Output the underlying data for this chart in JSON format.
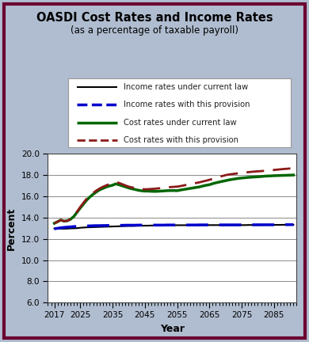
{
  "title": "OASDI Cost Rates and Income Rates",
  "subtitle": "(as a percentage of taxable payroll)",
  "xlabel": "Year",
  "ylabel": "Percent",
  "fig_bg_color": "#b0bdd0",
  "plot_bg_color": "#ffffff",
  "border_color": "#6b0030",
  "ylim": [
    6.0,
    20.0
  ],
  "yticks": [
    6.0,
    8.0,
    10.0,
    12.0,
    14.0,
    16.0,
    18.0,
    20.0
  ],
  "xlim": [
    2015,
    2092
  ],
  "xticks": [
    2017,
    2025,
    2035,
    2045,
    2055,
    2065,
    2075,
    2085
  ],
  "years": [
    2017,
    2018,
    2019,
    2020,
    2021,
    2022,
    2023,
    2024,
    2025,
    2026,
    2027,
    2028,
    2029,
    2030,
    2031,
    2032,
    2033,
    2034,
    2035,
    2036,
    2037,
    2038,
    2039,
    2040,
    2041,
    2042,
    2043,
    2044,
    2045,
    2046,
    2047,
    2048,
    2049,
    2050,
    2051,
    2052,
    2053,
    2054,
    2055,
    2056,
    2057,
    2058,
    2059,
    2060,
    2061,
    2062,
    2063,
    2064,
    2065,
    2066,
    2067,
    2068,
    2069,
    2070,
    2071,
    2072,
    2073,
    2074,
    2075,
    2076,
    2077,
    2078,
    2079,
    2080,
    2081,
    2082,
    2083,
    2084,
    2085,
    2086,
    2087,
    2088,
    2089,
    2090,
    2091
  ],
  "income_current_law": [
    12.98,
    12.97,
    12.97,
    12.96,
    12.97,
    12.99,
    13.0,
    13.01,
    13.05,
    13.07,
    13.09,
    13.1,
    13.11,
    13.12,
    13.13,
    13.14,
    13.15,
    13.16,
    13.17,
    13.18,
    13.19,
    13.2,
    13.21,
    13.22,
    13.22,
    13.23,
    13.24,
    13.24,
    13.25,
    13.25,
    13.26,
    13.26,
    13.27,
    13.27,
    13.27,
    13.28,
    13.28,
    13.28,
    13.29,
    13.29,
    13.29,
    13.29,
    13.29,
    13.29,
    13.29,
    13.29,
    13.3,
    13.3,
    13.3,
    13.3,
    13.3,
    13.3,
    13.3,
    13.3,
    13.3,
    13.3,
    13.3,
    13.3,
    13.3,
    13.3,
    13.31,
    13.31,
    13.31,
    13.31,
    13.31,
    13.32,
    13.32,
    13.32,
    13.32,
    13.32,
    13.32,
    13.33,
    13.33,
    13.33,
    13.33
  ],
  "income_provision": [
    12.95,
    13.0,
    13.05,
    13.08,
    13.11,
    13.13,
    13.16,
    13.18,
    13.2,
    13.21,
    13.22,
    13.23,
    13.24,
    13.25,
    13.25,
    13.26,
    13.26,
    13.27,
    13.27,
    13.28,
    13.28,
    13.28,
    13.29,
    13.29,
    13.29,
    13.29,
    13.3,
    13.3,
    13.3,
    13.3,
    13.3,
    13.3,
    13.3,
    13.3,
    13.3,
    13.31,
    13.31,
    13.31,
    13.31,
    13.31,
    13.31,
    13.31,
    13.31,
    13.31,
    13.31,
    13.32,
    13.32,
    13.32,
    13.32,
    13.32,
    13.32,
    13.32,
    13.32,
    13.32,
    13.32,
    13.32,
    13.32,
    13.32,
    13.33,
    13.33,
    13.33,
    13.33,
    13.33,
    13.33,
    13.33,
    13.33,
    13.33,
    13.33,
    13.33,
    13.33,
    13.34,
    13.34,
    13.34,
    13.34,
    13.34
  ],
  "cost_current_law": [
    13.47,
    13.62,
    13.78,
    13.67,
    13.71,
    13.85,
    14.1,
    14.5,
    14.9,
    15.28,
    15.65,
    15.95,
    16.2,
    16.42,
    16.62,
    16.75,
    16.88,
    16.98,
    17.05,
    17.18,
    17.1,
    17.0,
    16.9,
    16.8,
    16.72,
    16.65,
    16.58,
    16.53,
    16.5,
    16.5,
    16.48,
    16.47,
    16.48,
    16.5,
    16.52,
    16.54,
    16.55,
    16.55,
    16.54,
    16.6,
    16.65,
    16.7,
    16.75,
    16.8,
    16.85,
    16.9,
    16.98,
    17.05,
    17.1,
    17.2,
    17.28,
    17.35,
    17.42,
    17.48,
    17.55,
    17.6,
    17.65,
    17.7,
    17.73,
    17.76,
    17.79,
    17.81,
    17.83,
    17.85,
    17.87,
    17.9,
    17.92,
    17.93,
    17.95,
    17.96,
    17.97,
    17.98,
    17.99,
    18.0,
    18.01
  ],
  "cost_provision": [
    13.47,
    13.62,
    13.78,
    13.67,
    13.71,
    13.85,
    14.1,
    14.55,
    15.0,
    15.4,
    15.78,
    16.08,
    16.33,
    16.55,
    16.74,
    16.9,
    17.03,
    17.15,
    17.25,
    17.35,
    17.27,
    17.15,
    17.03,
    16.92,
    16.85,
    16.78,
    16.72,
    16.68,
    16.67,
    16.68,
    16.7,
    16.72,
    16.75,
    16.78,
    16.82,
    16.85,
    16.88,
    16.9,
    16.92,
    16.97,
    17.03,
    17.09,
    17.15,
    17.21,
    17.27,
    17.33,
    17.41,
    17.48,
    17.56,
    17.65,
    17.75,
    17.83,
    17.92,
    18.0,
    18.06,
    18.1,
    18.14,
    18.18,
    18.22,
    18.25,
    18.28,
    18.31,
    18.34,
    18.36,
    18.38,
    18.41,
    18.44,
    18.46,
    18.49,
    18.52,
    18.55,
    18.58,
    18.6,
    18.63,
    18.65
  ],
  "legend_entries": [
    {
      "label": "Income rates under current law",
      "color": "#000000",
      "linestyle": "solid",
      "linewidth": 1.5
    },
    {
      "label": "Income rates with this provision",
      "color": "#0000cc",
      "linestyle": "dashed",
      "linewidth": 2.5
    },
    {
      "label": "Cost rates under current law",
      "color": "#006600",
      "linestyle": "solid",
      "linewidth": 2.5
    },
    {
      "label": "Cost rates with this provision",
      "color": "#8b1a1a",
      "linestyle": "dashed",
      "linewidth": 2.0
    }
  ]
}
